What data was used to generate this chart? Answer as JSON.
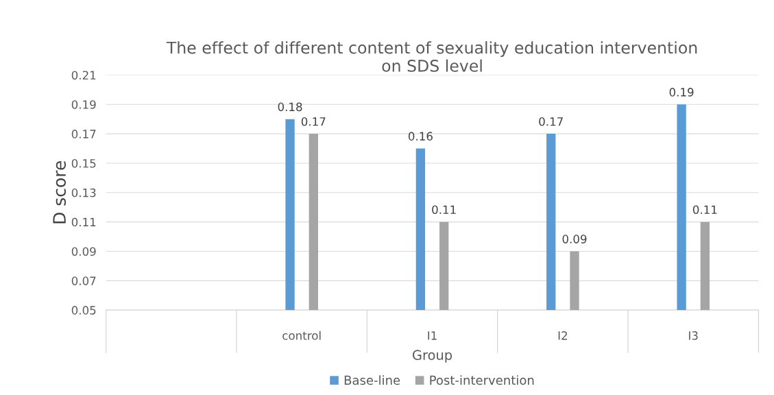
{
  "chart_data": {
    "type": "bar",
    "title": "The effect of different content of sexuality education intervention\non SDS level",
    "xlabel": "Group",
    "ylabel": "D score",
    "categories": [
      null,
      "control",
      "I1",
      "I2",
      "I3"
    ],
    "series": [
      {
        "name": "Base-line",
        "color": "#5b9bd5",
        "values": [
          null,
          0.18,
          0.16,
          0.17,
          0.19
        ]
      },
      {
        "name": "Post-intervention",
        "color": "#a5a5a5",
        "values": [
          null,
          0.17,
          0.11,
          0.09,
          0.11
        ]
      }
    ],
    "ylim": [
      0.05,
      0.21
    ],
    "yticks": [
      0.05,
      0.07,
      0.09,
      0.11,
      0.13,
      0.15,
      0.17,
      0.19,
      0.21
    ],
    "grid": "y",
    "legend": "bottom",
    "data_labels": true
  }
}
